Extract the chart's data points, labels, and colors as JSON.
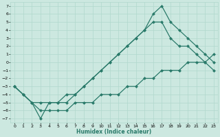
{
  "xlabel": "Humidex (Indice chaleur)",
  "ylabel": "",
  "xlim": [
    -0.5,
    23.5
  ],
  "ylim": [
    -7.5,
    7.5
  ],
  "xticks": [
    0,
    1,
    2,
    3,
    4,
    5,
    6,
    7,
    8,
    9,
    10,
    11,
    12,
    13,
    14,
    15,
    16,
    17,
    18,
    19,
    20,
    21,
    22,
    23
  ],
  "yticks": [
    7,
    6,
    5,
    4,
    3,
    2,
    1,
    0,
    -1,
    -2,
    -3,
    -4,
    -5,
    -6,
    -7
  ],
  "bg_color": "#cce8e0",
  "grid_color": "#b0d8cc",
  "line_color": "#2a7a6a",
  "line1_x": [
    0,
    1,
    2,
    3,
    4,
    5,
    6,
    7,
    8,
    9,
    10,
    11,
    12,
    13,
    14,
    15,
    16,
    17,
    18,
    19,
    20,
    21,
    22,
    23
  ],
  "line1_y": [
    -3,
    -4,
    -5,
    -7,
    -5,
    -5,
    -5,
    -4,
    -3,
    -2,
    -1,
    0,
    1,
    2,
    3,
    4,
    6,
    7,
    5,
    4,
    3,
    2,
    1,
    0
  ],
  "line2_x": [
    0,
    1,
    2,
    3,
    4,
    5,
    6,
    7,
    8,
    9,
    10,
    11,
    12,
    13,
    14,
    15,
    16,
    17,
    18,
    19,
    20,
    21,
    22,
    23
  ],
  "line2_y": [
    -3,
    -4,
    -5,
    -5,
    -5,
    -5,
    -4,
    -4,
    -3,
    -2,
    -1,
    0,
    1,
    2,
    3,
    4,
    5,
    5,
    3,
    2,
    2,
    1,
    0,
    -1
  ],
  "line3_x": [
    0,
    1,
    2,
    3,
    4,
    5,
    6,
    7,
    8,
    9,
    10,
    11,
    12,
    13,
    14,
    15,
    16,
    17,
    18,
    19,
    20,
    21,
    22,
    23
  ],
  "line3_y": [
    -3,
    -4,
    -5,
    -6,
    -6,
    -6,
    -6,
    -5,
    -5,
    -5,
    -4,
    -4,
    -4,
    -3,
    -3,
    -2,
    -2,
    -1,
    -1,
    -1,
    0,
    0,
    0,
    1
  ],
  "marker": "D",
  "marker_size": 2.5,
  "line_width": 0.9
}
